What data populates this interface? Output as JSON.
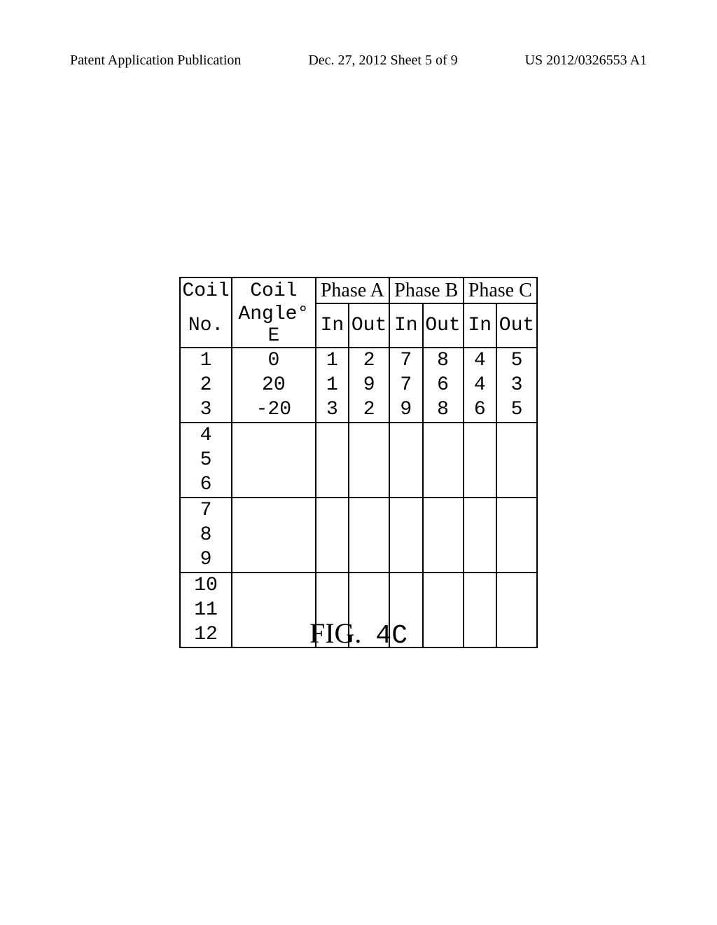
{
  "header": {
    "left": "Patent Application Publication",
    "center": "Dec. 27, 2012  Sheet 5 of 9",
    "right": "US 2012/0326553 A1"
  },
  "table": {
    "columns": {
      "coil_no_hdr": "Coil",
      "coil_no_sub": "No.",
      "angle_hdr": "Coil",
      "angle_sub": "Angle° E",
      "phase_a": "Phase A",
      "phase_b": "Phase B",
      "phase_c": "Phase C",
      "in_label": "In",
      "out_label": "Out"
    },
    "rows": [
      {
        "no": "1",
        "angle": "0",
        "a_in": "1",
        "a_out": "2",
        "b_in": "7",
        "b_out": "8",
        "c_in": "4",
        "c_out": "5"
      },
      {
        "no": "2",
        "angle": "20",
        "a_in": "1",
        "a_out": "9",
        "b_in": "7",
        "b_out": "6",
        "c_in": "4",
        "c_out": "3"
      },
      {
        "no": "3",
        "angle": "-20",
        "a_in": "3",
        "a_out": "2",
        "b_in": "9",
        "b_out": "8",
        "c_in": "6",
        "c_out": "5"
      },
      {
        "no": "4",
        "angle": "",
        "a_in": "",
        "a_out": "",
        "b_in": "",
        "b_out": "",
        "c_in": "",
        "c_out": ""
      },
      {
        "no": "5",
        "angle": "",
        "a_in": "",
        "a_out": "",
        "b_in": "",
        "b_out": "",
        "c_in": "",
        "c_out": ""
      },
      {
        "no": "6",
        "angle": "",
        "a_in": "",
        "a_out": "",
        "b_in": "",
        "b_out": "",
        "c_in": "",
        "c_out": ""
      },
      {
        "no": "7",
        "angle": "",
        "a_in": "",
        "a_out": "",
        "b_in": "",
        "b_out": "",
        "c_in": "",
        "c_out": ""
      },
      {
        "no": "8",
        "angle": "",
        "a_in": "",
        "a_out": "",
        "b_in": "",
        "b_out": "",
        "c_in": "",
        "c_out": ""
      },
      {
        "no": "9",
        "angle": "",
        "a_in": "",
        "a_out": "",
        "b_in": "",
        "b_out": "",
        "c_in": "",
        "c_out": ""
      },
      {
        "no": "10",
        "angle": "",
        "a_in": "",
        "a_out": "",
        "b_in": "",
        "b_out": "",
        "c_in": "",
        "c_out": ""
      },
      {
        "no": "11",
        "angle": "",
        "a_in": "",
        "a_out": "",
        "b_in": "",
        "b_out": "",
        "c_in": "",
        "c_out": ""
      },
      {
        "no": "12",
        "angle": "",
        "a_in": "",
        "a_out": "",
        "b_in": "",
        "b_out": "",
        "c_in": "",
        "c_out": ""
      }
    ]
  },
  "figure": {
    "prefix": "FIG.",
    "number": "4C"
  },
  "styling": {
    "border_color": "#000000",
    "background": "#ffffff",
    "table_font": "Courier New",
    "header_font": "Times New Roman",
    "cell_fontsize": 28,
    "header_fontsize": 20,
    "figure_fontsize": 40
  }
}
